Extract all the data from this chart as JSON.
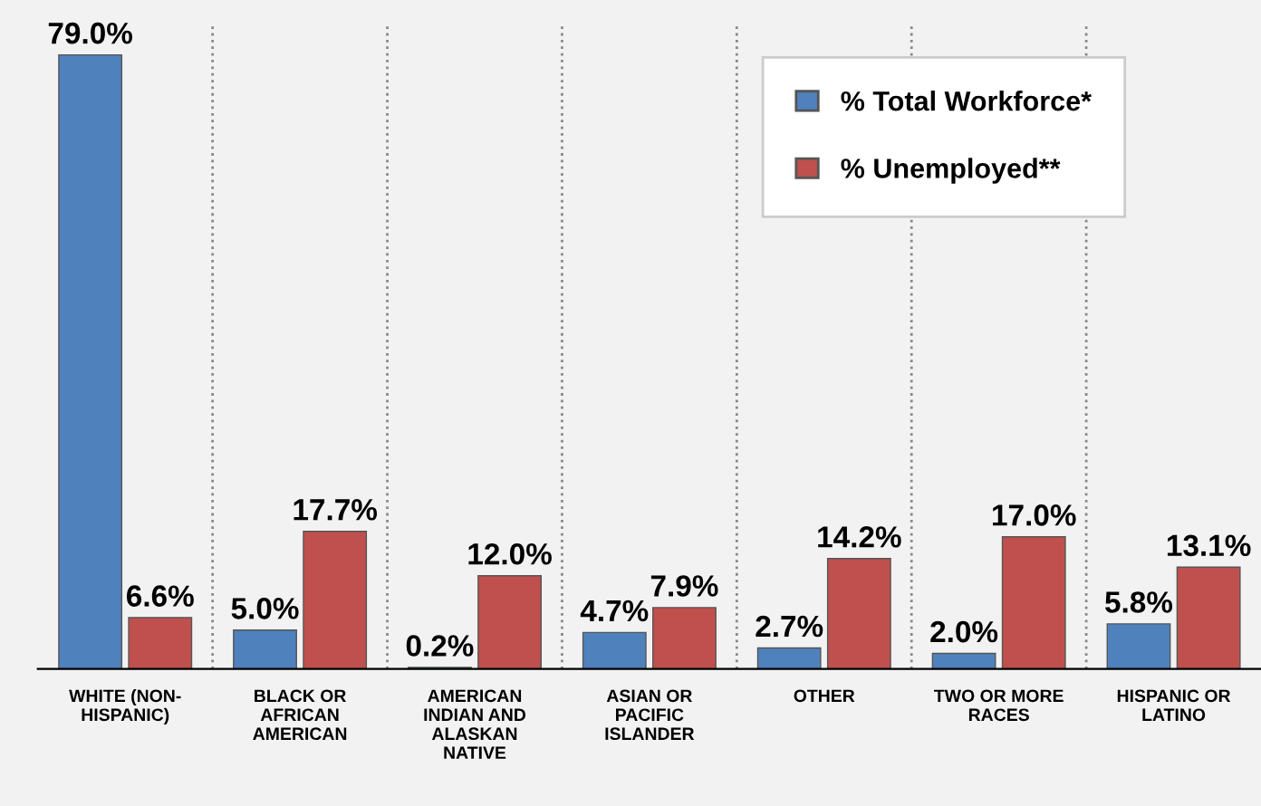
{
  "chart_data": {
    "type": "bar",
    "categories": [
      "WHITE (NON-\nHISPANIC)",
      "BLACK OR\nAFRICAN\nAMERICAN",
      "AMERICAN\nINDIAN AND\nALASKAN\nNATIVE",
      "ASIAN OR\nPACIFIC\nISLANDER",
      "OTHER",
      "TWO OR MORE\nRACES",
      "HISPANIC OR\nLATINO"
    ],
    "series": [
      {
        "name": "% Total Workforce*",
        "color": "#4f81bd",
        "values": [
          79.0,
          5.0,
          0.2,
          4.7,
          2.7,
          2.0,
          5.8
        ],
        "value_labels": [
          "79.0%",
          "5.0%",
          "0.2%",
          "4.7%",
          "2.7%",
          "2.0%",
          "5.8%"
        ]
      },
      {
        "name": "% Unemployed**",
        "color": "#c0504d",
        "values": [
          6.6,
          17.7,
          12.0,
          7.9,
          14.2,
          17.0,
          13.1
        ],
        "value_labels": [
          "6.6%",
          "17.7%",
          "12.0%",
          "7.9%",
          "14.2%",
          "17.0%",
          "13.1%"
        ]
      }
    ],
    "grid": "x",
    "legend": "top right"
  }
}
